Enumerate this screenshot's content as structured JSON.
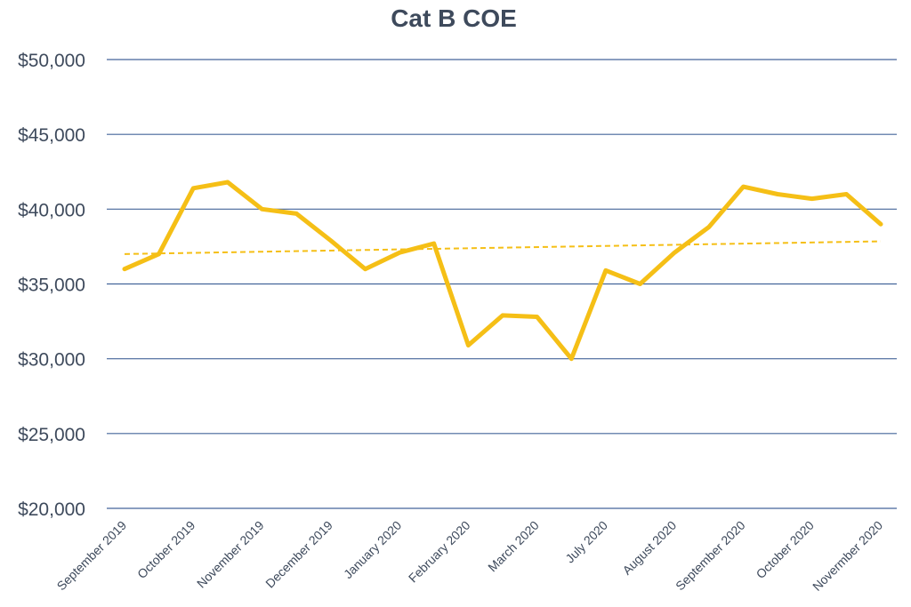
{
  "chart_data": {
    "type": "line",
    "title": "Cat B COE",
    "xlabel": "",
    "ylabel": "",
    "ylim": [
      20000,
      50000
    ],
    "yticks": [
      20000,
      25000,
      30000,
      35000,
      40000,
      45000,
      50000
    ],
    "ytick_labels": [
      "$20,000",
      "$25,000",
      "$30,000",
      "$35,000",
      "$40,000",
      "$45,000",
      "$50,000"
    ],
    "x_tick_labels": [
      "September 2019",
      "October 2019",
      "November 2019",
      "December 2019",
      "January 2020",
      "February 2020",
      "March 2020",
      "July 2020",
      "August 2020",
      "September 2020",
      "October 2020",
      "Novermber 2020"
    ],
    "grid": true,
    "series": [
      {
        "values": [
          36000,
          37000,
          41400,
          41800,
          40000,
          39700,
          37900,
          36000,
          37100,
          37700,
          30900,
          32900,
          32800,
          30000,
          35900,
          35000,
          37100,
          38800,
          41500,
          41000,
          40700,
          41000,
          39000
        ],
        "color": "#f5bf16",
        "style": "solid"
      }
    ],
    "trendline": {
      "type": "linear",
      "start": 37000,
      "end": 37850,
      "color": "#f5bf16",
      "style": "dashed"
    }
  }
}
